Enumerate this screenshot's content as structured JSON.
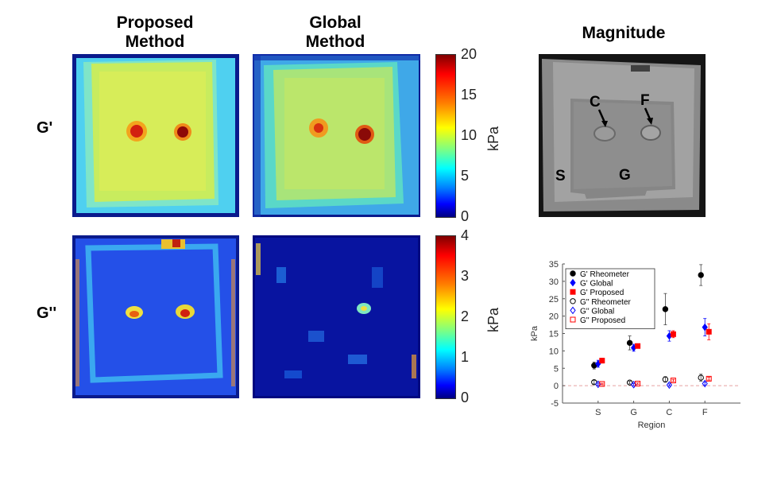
{
  "titles": {
    "proposed_line1": "Proposed",
    "proposed_line2": "Method",
    "global_line1": "Global",
    "global_line2": "Method",
    "magnitude": "Magnitude"
  },
  "row_labels": {
    "g_prime": "G'",
    "g_double_prime": "G''"
  },
  "colorbar_top": {
    "ticks": [
      "20",
      "15",
      "10",
      "5",
      "0"
    ],
    "unit": "kPa"
  },
  "colorbar_bottom": {
    "ticks": [
      "4",
      "3",
      "2",
      "1",
      "0"
    ],
    "unit": "kPa"
  },
  "magnitude_labels": {
    "c": "C",
    "f": "F",
    "s": "S",
    "g": "G"
  },
  "chart_data": {
    "type": "scatter",
    "xlabel": "Region",
    "ylabel": "kPa",
    "categories": [
      "S",
      "G",
      "C",
      "F"
    ],
    "ylim": [
      -5,
      35
    ],
    "yticks": [
      -5,
      0,
      5,
      10,
      15,
      20,
      25,
      30,
      35
    ],
    "legend_position": "top-left",
    "series": [
      {
        "name": "G' Rheometer",
        "marker": "filled-circle",
        "color": "#000000",
        "values": [
          5.8,
          12.3,
          22.0,
          31.8
        ],
        "errors": [
          1.0,
          2.0,
          4.5,
          3.0
        ]
      },
      {
        "name": "G' Global",
        "marker": "filled-diamond",
        "color": "#0000ff",
        "values": [
          6.3,
          10.9,
          14.3,
          16.8
        ],
        "errors": [
          1.0,
          1.0,
          1.5,
          2.5
        ]
      },
      {
        "name": "G' Proposed",
        "marker": "filled-square",
        "color": "#ff0000",
        "values": [
          7.2,
          11.4,
          14.8,
          15.5
        ],
        "errors": [
          0.7,
          0.6,
          1.0,
          2.3
        ]
      },
      {
        "name": "G'' Rheometer",
        "marker": "open-circle",
        "color": "#000000",
        "values": [
          1.0,
          0.9,
          1.8,
          2.3
        ],
        "errors": [
          0.5,
          0.4,
          0.8,
          1.0
        ]
      },
      {
        "name": "G'' Global",
        "marker": "open-diamond",
        "color": "#0000ff",
        "values": [
          0.4,
          0.3,
          0.2,
          0.6
        ],
        "errors": [
          0.3,
          0.3,
          0.3,
          0.4
        ]
      },
      {
        "name": "G'' Proposed",
        "marker": "open-square",
        "color": "#ff0000",
        "values": [
          0.5,
          0.6,
          1.5,
          2.0
        ],
        "errors": [
          0.2,
          0.2,
          0.3,
          0.4
        ]
      }
    ]
  }
}
